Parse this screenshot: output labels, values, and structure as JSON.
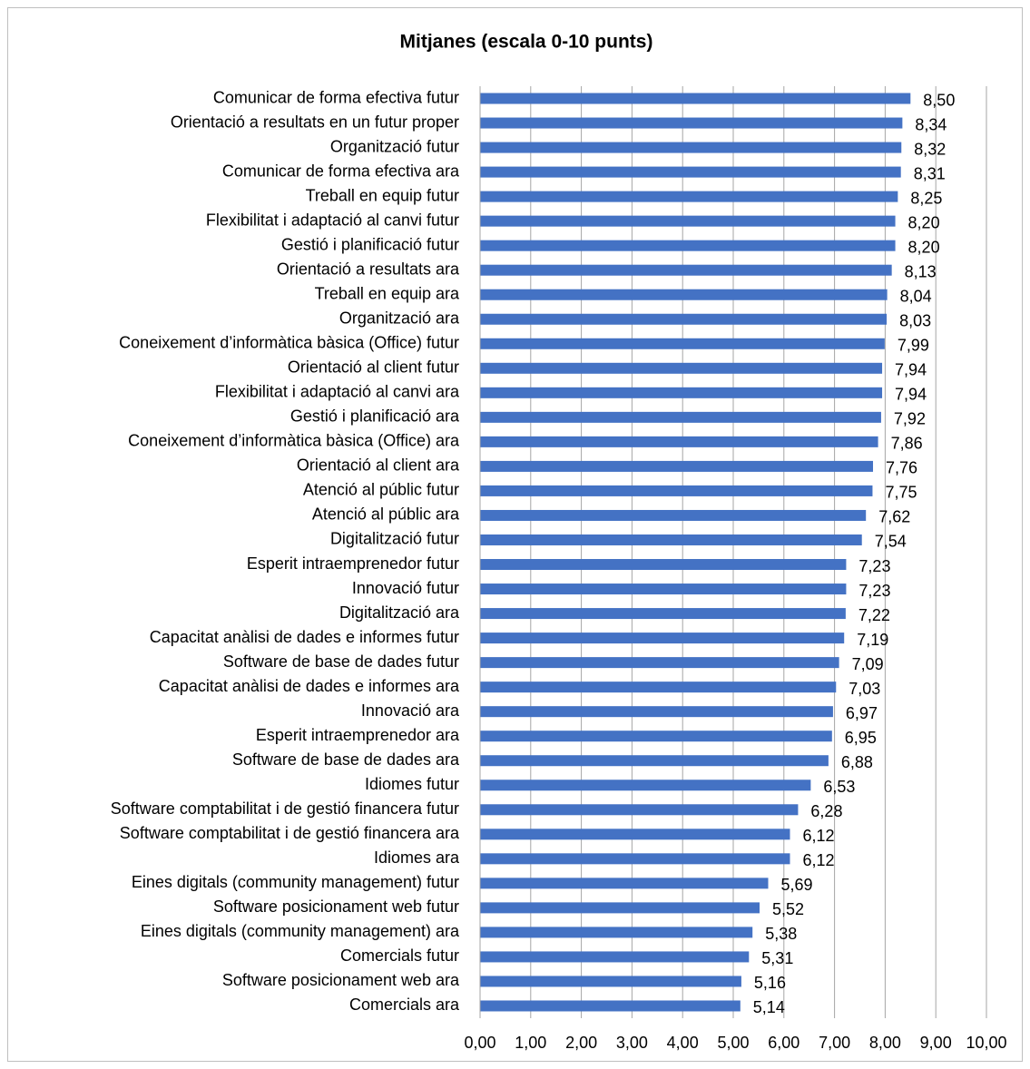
{
  "chart_data": {
    "type": "bar",
    "orientation": "horizontal",
    "title": "Mitjanes (escala 0-10 punts)",
    "categories": [
      "Comunicar de forma efectiva futur",
      "Orientació a resultats en un futur proper",
      "Organització futur",
      "Comunicar de forma efectiva ara",
      "Treball en equip futur",
      "Flexibilitat i adaptació al canvi futur",
      "Gestió i planificació futur",
      "Orientació a resultats ara",
      "Treball en equip ara",
      "Organització ara",
      "Coneixement d’informàtica bàsica (Office) futur",
      "Orientació al client futur",
      "Flexibilitat i adaptació al canvi ara",
      "Gestió i planificació ara",
      "Coneixement d’informàtica bàsica (Office) ara",
      "Orientació al client ara",
      "Atenció al públic futur",
      "Atenció al públic ara",
      "Digitalització futur",
      "Esperit intraemprenedor futur",
      "Innovació futur",
      "Digitalització ara",
      "Capacitat anàlisi de dades e informes futur",
      "Software de base de dades futur",
      "Capacitat anàlisi de dades e informes ara",
      "Innovació ara",
      "Esperit intraemprenedor ara",
      "Software de base de dades ara",
      "Idiomes futur",
      "Software comptabilitat i de gestió financera futur",
      "Software comptabilitat i de gestió financera ara",
      "Idiomes ara",
      "Eines digitals (community management) futur",
      "Software posicionament web futur",
      "Eines digitals (community management) ara",
      "Comercials futur",
      "Software posicionament web ara",
      "Comercials ara"
    ],
    "values": [
      8.5,
      8.34,
      8.32,
      8.31,
      8.25,
      8.2,
      8.2,
      8.13,
      8.04,
      8.03,
      7.99,
      7.94,
      7.94,
      7.92,
      7.86,
      7.76,
      7.75,
      7.62,
      7.54,
      7.23,
      7.23,
      7.22,
      7.19,
      7.09,
      7.03,
      6.97,
      6.95,
      6.88,
      6.53,
      6.28,
      6.12,
      6.12,
      5.69,
      5.52,
      5.38,
      5.31,
      5.16,
      5.14
    ],
    "value_labels": [
      "8,50",
      "8,34",
      "8,32",
      "8,31",
      "8,25",
      "8,20",
      "8,20",
      "8,13",
      "8,04",
      "8,03",
      "7,99",
      "7,94",
      "7,94",
      "7,92",
      "7,86",
      "7,76",
      "7,75",
      "7,62",
      "7,54",
      "7,23",
      "7,23",
      "7,22",
      "7,19",
      "7,09",
      "7,03",
      "6,97",
      "6,95",
      "6,88",
      "6,53",
      "6,28",
      "6,12",
      "6,12",
      "5,69",
      "5,52",
      "5,38",
      "5,31",
      "5,16",
      "5,14"
    ],
    "color": "#4472c4",
    "xlim": [
      0,
      10
    ],
    "xticks": [
      {
        "value": 0,
        "label": "0,00"
      },
      {
        "value": 1,
        "label": "1,00"
      },
      {
        "value": 2,
        "label": "2,00"
      },
      {
        "value": 3,
        "label": "3,00"
      },
      {
        "value": 4,
        "label": "4,00"
      },
      {
        "value": 5,
        "label": "5,00"
      },
      {
        "value": 6,
        "label": "6,00"
      },
      {
        "value": 7,
        "label": "7,00"
      },
      {
        "value": 8,
        "label": "8,00"
      },
      {
        "value": 9,
        "label": "9,00"
      },
      {
        "value": 10,
        "label": "10,00"
      }
    ],
    "grid": true
  }
}
